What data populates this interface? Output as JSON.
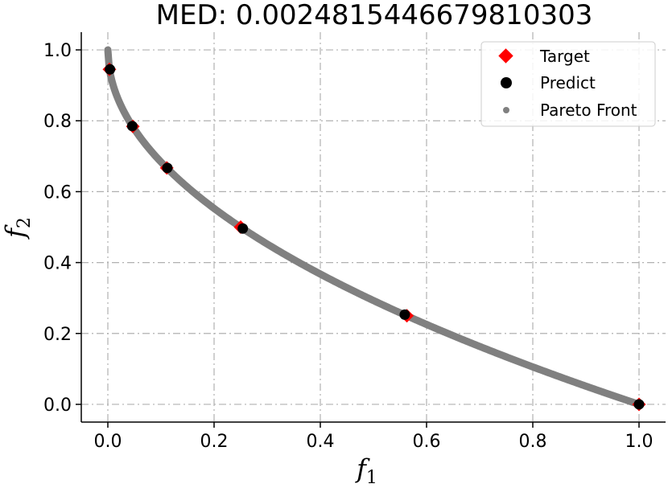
{
  "chart_data": {
    "type": "scatter",
    "title": "MED: 0.0024815446679810303",
    "xlabel": "f",
    "xlabel_sub": "1",
    "ylabel": "f",
    "ylabel_sub": "2",
    "xlim": [
      -0.05,
      1.05
    ],
    "ylim": [
      -0.05,
      1.05
    ],
    "xticks": [
      0.0,
      0.2,
      0.4,
      0.6,
      0.8,
      1.0
    ],
    "yticks": [
      0.0,
      0.2,
      0.4,
      0.6,
      0.8,
      1.0
    ],
    "xtick_labels": [
      "0.0",
      "0.2",
      "0.4",
      "0.6",
      "0.8",
      "1.0"
    ],
    "ytick_labels": [
      "0.0",
      "0.2",
      "0.4",
      "0.6",
      "0.8",
      "1.0"
    ],
    "grid": true,
    "legend_position": "top-right",
    "series": [
      {
        "name": "Target",
        "marker": "diamond",
        "color": "#ff0000",
        "x": [
          0.003,
          0.047,
          0.111,
          0.25,
          0.563,
          1.0
        ],
        "y": [
          0.945,
          0.784,
          0.667,
          0.5,
          0.25,
          0.0
        ]
      },
      {
        "name": "Predict",
        "marker": "circle",
        "color": "#000000",
        "x": [
          0.004,
          0.046,
          0.112,
          0.254,
          0.559,
          1.0
        ],
        "y": [
          0.945,
          0.785,
          0.667,
          0.496,
          0.253,
          0.0
        ]
      },
      {
        "name": "Pareto Front",
        "marker": "dot",
        "color": "#808080",
        "curve": "f2 = 1 - sqrt(f1)",
        "x": [
          0.0,
          0.0002,
          0.0005,
          0.001,
          0.002,
          0.003,
          0.005,
          0.008,
          0.012,
          0.018,
          0.025,
          0.035,
          0.047,
          0.06,
          0.075,
          0.09,
          0.111,
          0.13,
          0.15,
          0.175,
          0.2,
          0.225,
          0.25,
          0.28,
          0.31,
          0.34,
          0.37,
          0.4,
          0.44,
          0.48,
          0.52,
          0.563,
          0.6,
          0.65,
          0.7,
          0.75,
          0.8,
          0.85,
          0.9,
          0.95,
          1.0
        ],
        "y": [
          1.0,
          0.986,
          0.978,
          0.968,
          0.955,
          0.945,
          0.929,
          0.911,
          0.89,
          0.866,
          0.842,
          0.813,
          0.783,
          0.755,
          0.726,
          0.7,
          0.667,
          0.639,
          0.613,
          0.582,
          0.553,
          0.526,
          0.5,
          0.471,
          0.443,
          0.417,
          0.392,
          0.368,
          0.337,
          0.307,
          0.279,
          0.25,
          0.225,
          0.194,
          0.163,
          0.134,
          0.106,
          0.078,
          0.051,
          0.025,
          0.0
        ]
      }
    ]
  }
}
